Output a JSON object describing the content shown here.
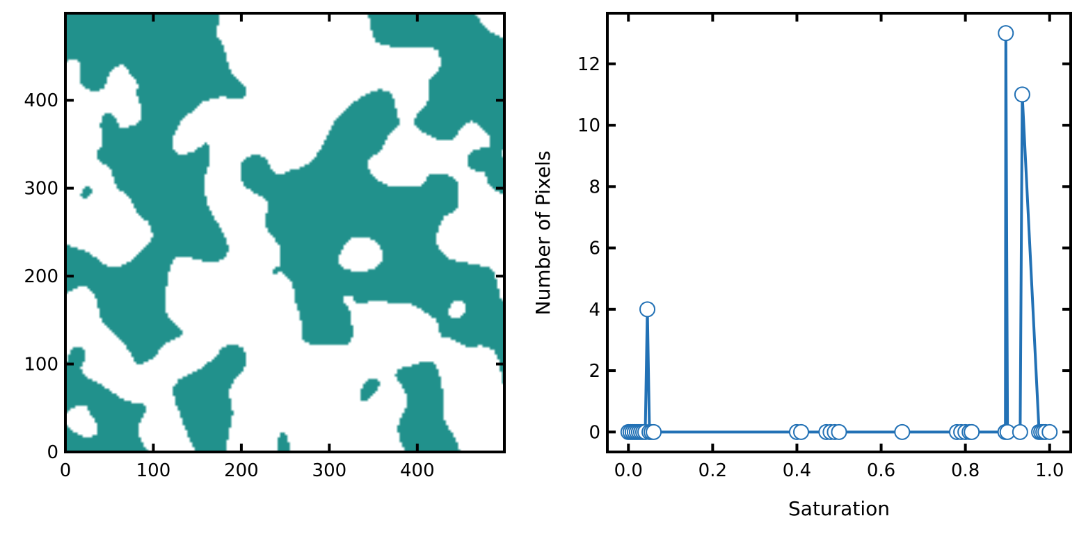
{
  "colors": {
    "phase": "#21918c",
    "background": "#ffffff",
    "line": "#2271b5",
    "marker_face": "#ffffff",
    "axes": "#000000"
  },
  "chart_data": [
    {
      "type": "heatmap",
      "description_values": "binary two-phase field (teal = phase 1, white = phase 0)",
      "x_ticks": [
        "0",
        "100",
        "200",
        "300",
        "400"
      ],
      "y_ticks": [
        "0",
        "100",
        "200",
        "300",
        "400"
      ],
      "xlim": [
        0,
        499
      ],
      "ylim": [
        0,
        499
      ],
      "grid": false
    },
    {
      "type": "line",
      "xlabel": "Saturation",
      "ylabel": "Number of Pixels",
      "xlim": [
        -0.05,
        1.05
      ],
      "ylim": [
        -0.65,
        13.65
      ],
      "x_ticks": [
        "0.0",
        "0.2",
        "0.4",
        "0.6",
        "0.8",
        "1.0"
      ],
      "y_ticks": [
        "0",
        "2",
        "4",
        "6",
        "8",
        "10",
        "12"
      ],
      "grid": false,
      "series": [
        {
          "marker": "circle",
          "x": [
            0.0,
            0.005,
            0.01,
            0.015,
            0.02,
            0.025,
            0.03,
            0.035,
            0.04,
            0.045,
            0.05,
            0.055,
            0.06,
            0.4,
            0.41,
            0.47,
            0.48,
            0.49,
            0.5,
            0.65,
            0.78,
            0.79,
            0.8,
            0.81,
            0.815,
            0.895,
            0.896,
            0.9,
            0.93,
            0.935,
            0.975,
            0.98,
            0.985,
            0.99,
            1.0
          ],
          "y": [
            0,
            0,
            0,
            0,
            0,
            0,
            0,
            0,
            0,
            4,
            0,
            0,
            0,
            0,
            0,
            0,
            0,
            0,
            0,
            0,
            0,
            0,
            0,
            0,
            0,
            0,
            13,
            0,
            0,
            11,
            0,
            0,
            0,
            0,
            0
          ]
        }
      ]
    }
  ]
}
